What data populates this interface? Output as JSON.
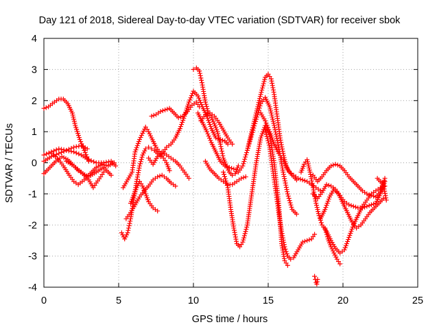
{
  "chart_data": {
    "type": "scatter",
    "title": "Day 121 of 2018, Sidereal Day-to-day VTEC variation (SDTVAR) for receiver sbok",
    "xlabel": "GPS time / hours",
    "ylabel": "SDTVAR / TECUs",
    "xlim": [
      0,
      25
    ],
    "ylim": [
      -4,
      4
    ],
    "xticks": [
      "0",
      "5",
      "10",
      "15",
      "20",
      "25"
    ],
    "yticks": [
      "-4",
      "-3",
      "-2",
      "-1",
      "0",
      "1",
      "2",
      "3",
      "4"
    ],
    "grid": true,
    "marker": "+",
    "color": "#ff0000",
    "series": [
      {
        "name": "arc-01",
        "x": [
          0.0,
          0.3,
          0.7,
          1.0,
          1.3,
          1.6,
          1.9,
          2.1,
          2.4,
          2.7,
          3.0
        ],
        "y": [
          1.75,
          1.8,
          1.95,
          2.05,
          2.05,
          1.9,
          1.6,
          1.2,
          0.75,
          0.4,
          0.05
        ]
      },
      {
        "name": "arc-02",
        "x": [
          0.0,
          0.5,
          1.0,
          1.5,
          2.0,
          2.5,
          3.0,
          3.5,
          4.0,
          4.5,
          4.8
        ],
        "y": [
          0.25,
          0.35,
          0.45,
          0.4,
          0.35,
          0.25,
          0.1,
          0.0,
          0.0,
          0.05,
          -0.1
        ]
      },
      {
        "name": "arc-03",
        "x": [
          0.0,
          0.5,
          1.0,
          1.5,
          2.0,
          2.5,
          2.9
        ],
        "y": [
          0.05,
          0.2,
          0.3,
          0.4,
          0.5,
          0.55,
          0.45
        ]
      },
      {
        "name": "arc-04",
        "x": [
          0.0,
          0.4,
          0.8,
          1.2,
          1.6,
          2.0,
          2.3,
          2.6,
          3.0,
          3.5,
          4.0,
          4.5
        ],
        "y": [
          -0.35,
          -0.15,
          0.05,
          0.2,
          0.1,
          -0.1,
          -0.25,
          -0.35,
          -0.45,
          -0.3,
          -0.15,
          -0.4
        ]
      },
      {
        "name": "arc-05",
        "x": [
          0.5,
          0.9,
          1.3,
          1.7,
          2.0,
          2.3,
          2.7,
          3.1,
          3.5,
          3.9,
          4.3,
          4.7
        ],
        "y": [
          0.3,
          0.15,
          -0.1,
          -0.4,
          -0.6,
          -0.7,
          -0.55,
          -0.35,
          -0.15,
          -0.05,
          -0.1,
          0.0
        ]
      },
      {
        "name": "arc-06",
        "x": [
          1.5,
          2.0,
          2.5,
          3.0,
          3.3,
          3.5,
          3.8,
          4.0
        ],
        "y": [
          0.05,
          -0.1,
          -0.3,
          -0.55,
          -0.8,
          -0.65,
          -0.45,
          -0.3
        ]
      },
      {
        "name": "arc-07",
        "x": [
          5.2,
          5.4,
          5.6,
          5.8,
          6.0,
          6.2,
          6.4,
          6.6,
          6.8,
          7.0,
          7.2,
          7.4,
          7.6,
          7.8,
          8.0,
          8.2,
          8.5,
          8.8,
          9.1,
          9.4,
          9.7,
          10.0,
          10.3,
          10.6,
          10.9,
          11.2,
          11.5,
          11.8,
          12.1,
          12.3
        ],
        "y": [
          -2.25,
          -2.45,
          -2.25,
          -1.8,
          -1.2,
          -0.6,
          -0.1,
          0.25,
          0.45,
          0.5,
          0.45,
          0.4,
          0.3,
          0.2,
          0.35,
          0.5,
          0.6,
          0.8,
          1.1,
          1.5,
          1.95,
          2.3,
          2.15,
          1.8,
          1.5,
          1.1,
          0.8,
          0.75,
          0.7,
          0.6
        ]
      },
      {
        "name": "arc-08",
        "x": [
          5.3,
          5.6,
          5.9,
          6.1,
          6.4,
          6.6,
          6.8,
          7.0,
          7.2,
          7.5,
          7.8,
          8.0,
          8.2,
          8.4
        ],
        "y": [
          -0.8,
          -0.55,
          -0.3,
          0.35,
          0.75,
          0.95,
          1.15,
          1.0,
          0.8,
          0.5,
          0.3,
          0.15,
          0.0,
          -0.25
        ]
      },
      {
        "name": "arc-09",
        "x": [
          5.5,
          5.8,
          6.1,
          6.4,
          6.7,
          7.0,
          7.3,
          7.6,
          7.9,
          8.2,
          8.5,
          8.8
        ],
        "y": [
          -1.8,
          -1.6,
          -1.35,
          -1.1,
          -0.9,
          -0.75,
          -0.55,
          -0.45,
          -0.4,
          -0.5,
          -0.65,
          -0.75
        ]
      },
      {
        "name": "arc-10",
        "x": [
          5.8,
          6.0,
          6.2,
          6.4,
          6.6,
          6.8,
          7.0,
          7.3,
          7.6
        ],
        "y": [
          -1.3,
          -1.05,
          -0.8,
          -0.6,
          -0.75,
          -1.0,
          -1.25,
          -1.45,
          -1.55
        ]
      },
      {
        "name": "arc-11",
        "x": [
          7.0,
          7.3,
          7.6,
          7.9,
          8.2,
          8.5,
          8.8,
          9.1,
          9.4,
          9.7
        ],
        "y": [
          0.15,
          -0.05,
          0.2,
          0.35,
          0.25,
          0.15,
          0.05,
          -0.1,
          -0.3,
          -0.5
        ]
      },
      {
        "name": "arc-12",
        "x": [
          7.2,
          7.5,
          7.8,
          8.1,
          8.4,
          8.7,
          9.0,
          9.3,
          9.6,
          9.9,
          10.2,
          10.4
        ],
        "y": [
          1.5,
          1.55,
          1.65,
          1.7,
          1.75,
          1.6,
          1.45,
          1.5,
          1.65,
          1.85,
          1.95,
          1.8
        ]
      },
      {
        "name": "arc-13",
        "x": [
          10.0,
          10.2,
          10.4,
          10.6,
          10.8,
          11.0,
          11.2,
          11.4,
          11.6,
          11.8,
          12.0,
          12.2,
          12.4,
          12.6,
          12.8,
          13.0
        ],
        "y": [
          3.0,
          3.05,
          2.95,
          2.5,
          1.95,
          1.6,
          1.45,
          1.25,
          1.0,
          0.6,
          0.15,
          -0.1,
          -0.3,
          -0.4,
          -0.35,
          -0.1
        ]
      },
      {
        "name": "arc-14",
        "x": [
          10.3,
          10.6,
          10.9,
          11.2,
          11.5,
          11.8,
          12.1,
          12.4,
          12.7
        ],
        "y": [
          1.6,
          1.3,
          1.0,
          0.65,
          0.35,
          0.05,
          -0.1,
          -0.15,
          -0.2
        ]
      },
      {
        "name": "arc-15",
        "x": [
          10.5,
          10.8,
          11.1,
          11.4,
          11.7,
          12.0,
          12.3,
          12.6
        ],
        "y": [
          1.35,
          1.55,
          1.6,
          1.5,
          1.3,
          1.05,
          0.8,
          0.6
        ]
      },
      {
        "name": "arc-16",
        "x": [
          10.8,
          11.1,
          11.4,
          11.7,
          12.0,
          12.3,
          12.6,
          12.9,
          13.2,
          13.5
        ],
        "y": [
          0.05,
          -0.2,
          -0.35,
          -0.5,
          -0.6,
          -0.7,
          -0.7,
          -0.6,
          -0.5,
          -0.45
        ]
      },
      {
        "name": "arc-17",
        "x": [
          12.0,
          12.3,
          12.5,
          12.7,
          12.9,
          13.1,
          13.3,
          13.6,
          13.9,
          14.2,
          14.5,
          14.8,
          15.1,
          15.4,
          15.7,
          15.9,
          16.1,
          16.3
        ],
        "y": [
          -0.3,
          -0.8,
          -1.5,
          -2.1,
          -2.6,
          -2.7,
          -2.55,
          -2.0,
          -1.0,
          0.0,
          0.8,
          1.2,
          0.9,
          0.0,
          -1.3,
          -2.6,
          -3.15,
          -3.3
        ]
      },
      {
        "name": "arc-18",
        "x": [
          13.0,
          13.3,
          13.6,
          13.9,
          14.2,
          14.5,
          14.8,
          15.0,
          15.2,
          15.4,
          15.6,
          15.8,
          16.0,
          16.2,
          16.4,
          16.7,
          17.0,
          17.3,
          17.6,
          17.9,
          18.2,
          18.5
        ],
        "y": [
          -0.3,
          -0.1,
          0.4,
          1.0,
          1.6,
          2.2,
          2.75,
          2.85,
          2.7,
          2.2,
          1.5,
          0.8,
          0.3,
          -0.1,
          -0.3,
          -0.4,
          -0.5,
          -0.55,
          -0.6,
          -0.7,
          -0.8,
          -0.9
        ]
      },
      {
        "name": "arc-19",
        "x": [
          13.6,
          13.9,
          14.2,
          14.5,
          14.8,
          15.1,
          15.4,
          15.7,
          16.0,
          16.3,
          16.6,
          16.9
        ],
        "y": [
          0.4,
          0.9,
          1.4,
          1.9,
          2.1,
          1.8,
          1.2,
          0.5,
          -0.3,
          -1.0,
          -1.5,
          -1.65
        ]
      },
      {
        "name": "arc-20",
        "x": [
          14.5,
          14.8,
          15.1,
          15.4,
          15.7,
          16.0,
          16.3,
          16.6,
          16.9
        ],
        "y": [
          1.6,
          1.35,
          1.0,
          0.6,
          0.3,
          0.1,
          -0.2,
          -0.4,
          -0.55
        ]
      },
      {
        "name": "arc-21",
        "x": [
          14.8,
          15.1,
          15.3,
          15.5,
          15.7,
          15.9,
          16.1,
          16.3,
          16.5,
          16.7,
          17.0,
          17.3,
          17.6,
          17.9,
          18.1
        ],
        "y": [
          1.05,
          0.5,
          -0.2,
          -0.9,
          -1.6,
          -2.2,
          -2.7,
          -3.0,
          -3.1,
          -3.05,
          -2.8,
          -2.55,
          -2.5,
          -2.45,
          -2.3
        ]
      },
      {
        "name": "arc-22",
        "x": [
          17.2,
          17.4,
          17.6,
          17.8,
          18.0,
          18.2,
          18.4,
          18.6,
          18.9,
          19.2,
          19.5,
          19.8,
          20.1,
          20.4,
          20.7,
          21.0,
          21.3,
          21.6,
          21.9,
          22.2,
          22.5,
          22.8
        ],
        "y": [
          -0.3,
          -0.05,
          0.1,
          -0.3,
          -0.8,
          -1.3,
          -1.7,
          -2.0,
          -2.2,
          -2.5,
          -2.75,
          -2.9,
          -2.8,
          -2.4,
          -2.0,
          -1.7,
          -1.4,
          -1.2,
          -1.0,
          -0.9,
          -0.8,
          -0.75
        ]
      },
      {
        "name": "arc-23",
        "x": [
          18.0,
          18.3,
          18.6,
          18.9,
          19.2,
          19.5,
          19.8,
          20.1,
          20.4,
          20.7,
          21.0,
          21.3,
          21.6,
          21.9,
          22.2,
          22.5,
          22.8
        ],
        "y": [
          -0.4,
          -0.6,
          -0.45,
          -0.25,
          -0.1,
          -0.05,
          -0.1,
          -0.25,
          -0.45,
          -0.6,
          -0.75,
          -0.9,
          -1.0,
          -1.05,
          -1.1,
          -0.95,
          -0.5
        ]
      },
      {
        "name": "arc-24",
        "x": [
          18.0,
          18.3,
          18.6,
          18.9,
          19.2,
          19.5,
          19.8,
          20.1,
          20.4,
          20.7,
          21.0,
          21.3,
          21.6,
          21.9,
          22.2,
          22.5,
          22.8
        ],
        "y": [
          -1.0,
          -1.15,
          -0.95,
          -0.7,
          -0.75,
          -0.85,
          -1.05,
          -1.25,
          -1.35,
          -1.4,
          -1.45,
          -1.45,
          -1.4,
          -1.35,
          -1.3,
          -1.0,
          -0.6
        ]
      },
      {
        "name": "arc-25",
        "x": [
          18.5,
          18.8,
          19.1,
          19.4,
          19.7,
          20.0,
          20.3,
          20.6,
          20.9,
          21.2,
          21.5,
          21.8,
          22.1,
          22.4,
          22.7
        ],
        "y": [
          -1.8,
          -1.5,
          -1.1,
          -0.85,
          -1.0,
          -1.3,
          -1.6,
          -1.9,
          -2.1,
          -2.0,
          -1.8,
          -1.6,
          -1.45,
          -1.3,
          -1.15
        ]
      },
      {
        "name": "arc-26",
        "x": [
          18.8,
          19.0,
          19.2,
          19.4,
          19.6,
          19.8
        ],
        "y": [
          -2.1,
          -2.45,
          -2.7,
          -2.9,
          -3.1,
          -3.25
        ]
      },
      {
        "name": "arc-27",
        "x": [
          18.1,
          18.15,
          18.2,
          18.25,
          18.3
        ],
        "y": [
          -3.65,
          -3.75,
          -3.85,
          -3.9,
          -3.75
        ]
      },
      {
        "name": "arc-28",
        "x": [
          22.3,
          22.5,
          22.7,
          22.9
        ],
        "y": [
          -0.5,
          -0.6,
          -0.7,
          -1.2
        ]
      }
    ]
  }
}
